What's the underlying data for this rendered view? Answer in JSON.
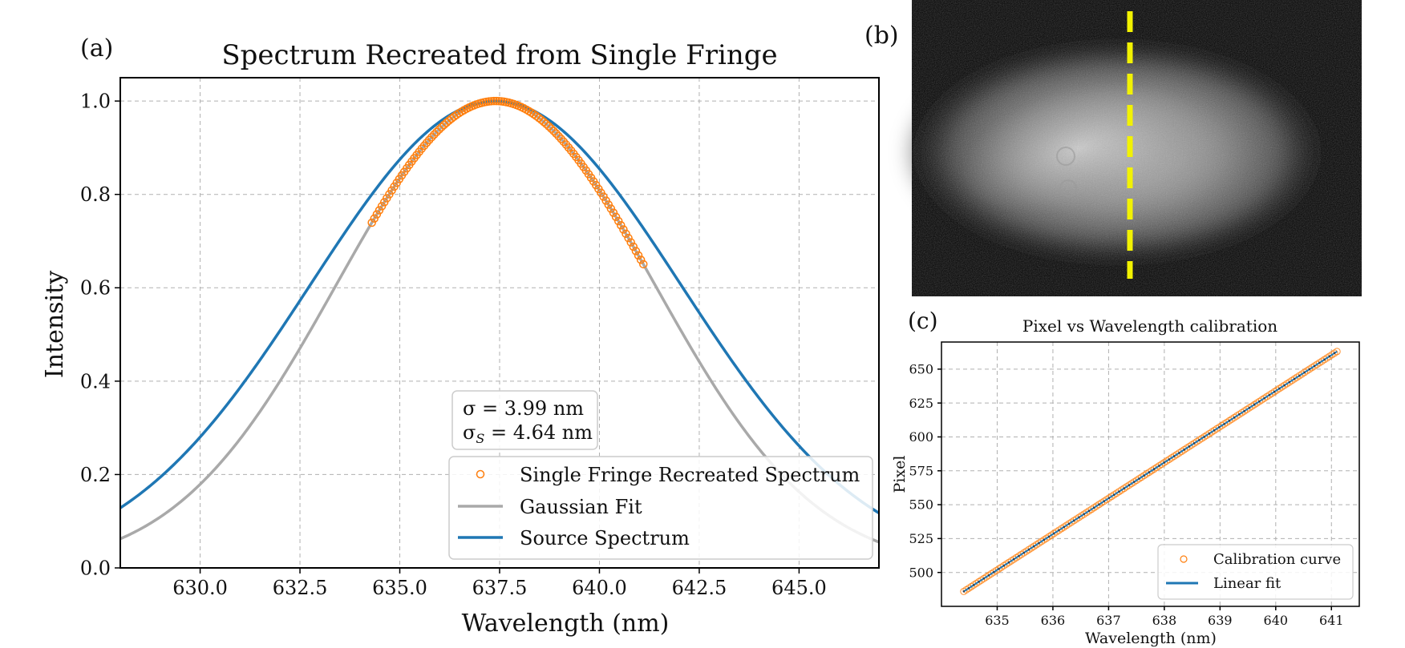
{
  "panel_labels": {
    "a": "(a)",
    "b": "(b)",
    "c": "(c)"
  },
  "colors": {
    "orange": "#ff7f0e",
    "blue": "#1f77b4",
    "gray": "#a9a9a9",
    "yellow": "#f2f200",
    "dark": "#2d3e50"
  },
  "chart_data": [
    {
      "id": "a",
      "type": "line",
      "title": "Spectrum Recreated from Single Fringe",
      "xlabel": "Wavelength (nm)",
      "ylabel": "Intensity",
      "xlim": [
        628,
        647
      ],
      "ylim": [
        0,
        1.05
      ],
      "grid": true,
      "xticks": [
        630.0,
        632.5,
        635.0,
        637.5,
        640.0,
        642.5,
        645.0
      ],
      "xtick_labels": [
        "630.0",
        "632.5",
        "635.0",
        "637.5",
        "640.0",
        "642.5",
        "645.0"
      ],
      "yticks": [
        0.0,
        0.2,
        0.4,
        0.6,
        0.8,
        1.0
      ],
      "ytick_labels": [
        "0.0",
        "0.2",
        "0.4",
        "0.6",
        "0.8",
        "1.0"
      ],
      "annotation": {
        "line1": "σ = 3.99 nm",
        "line2_prefix": "σ",
        "line2_sub": "S",
        "line2_suffix": " = 4.64 nm"
      },
      "legend_position": "lower-right",
      "series": [
        {
          "name": "Single Fringe Recreated Spectrum",
          "kind": "markers",
          "color": "#ff7f0e",
          "center": 637.4,
          "sigma": 3.99,
          "x_range": [
            634.3,
            641.1
          ],
          "n_points": 110
        },
        {
          "name": "Gaussian Fit",
          "kind": "gaussian",
          "color": "#a9a9a9",
          "center": 637.4,
          "sigma": 3.99,
          "x_range": [
            628,
            647
          ]
        },
        {
          "name": "Source Spectrum",
          "kind": "gaussian",
          "color": "#1f77b4",
          "center": 637.4,
          "sigma": 4.64,
          "x_range": [
            628,
            647
          ]
        }
      ]
    },
    {
      "id": "c",
      "type": "scatter",
      "title": "Pixel vs Wavelength calibration",
      "xlabel": "Wavelength (nm)",
      "ylabel": "Pixel",
      "xlim": [
        634.0,
        641.5
      ],
      "ylim": [
        475,
        670
      ],
      "grid": true,
      "xticks": [
        635,
        636,
        637,
        638,
        639,
        640,
        641
      ],
      "xtick_labels": [
        "635",
        "636",
        "637",
        "638",
        "639",
        "640",
        "641"
      ],
      "yticks": [
        500,
        525,
        550,
        575,
        600,
        625,
        650
      ],
      "ytick_labels": [
        "500",
        "525",
        "550",
        "575",
        "600",
        "625",
        "650"
      ],
      "legend_position": "lower-right",
      "series": [
        {
          "name": "Calibration curve",
          "kind": "markers",
          "color": "#ff7f0e",
          "x_range": [
            634.4,
            641.1
          ],
          "y_range": [
            486,
            663
          ],
          "n_points": 150
        },
        {
          "name": "Linear fit",
          "kind": "line",
          "color": "#1f77b4",
          "x_range": [
            634.4,
            641.1
          ],
          "y_range": [
            486,
            663
          ]
        }
      ]
    }
  ],
  "image_b": {
    "description_label": "speckle beam image with dashed yellow line"
  }
}
